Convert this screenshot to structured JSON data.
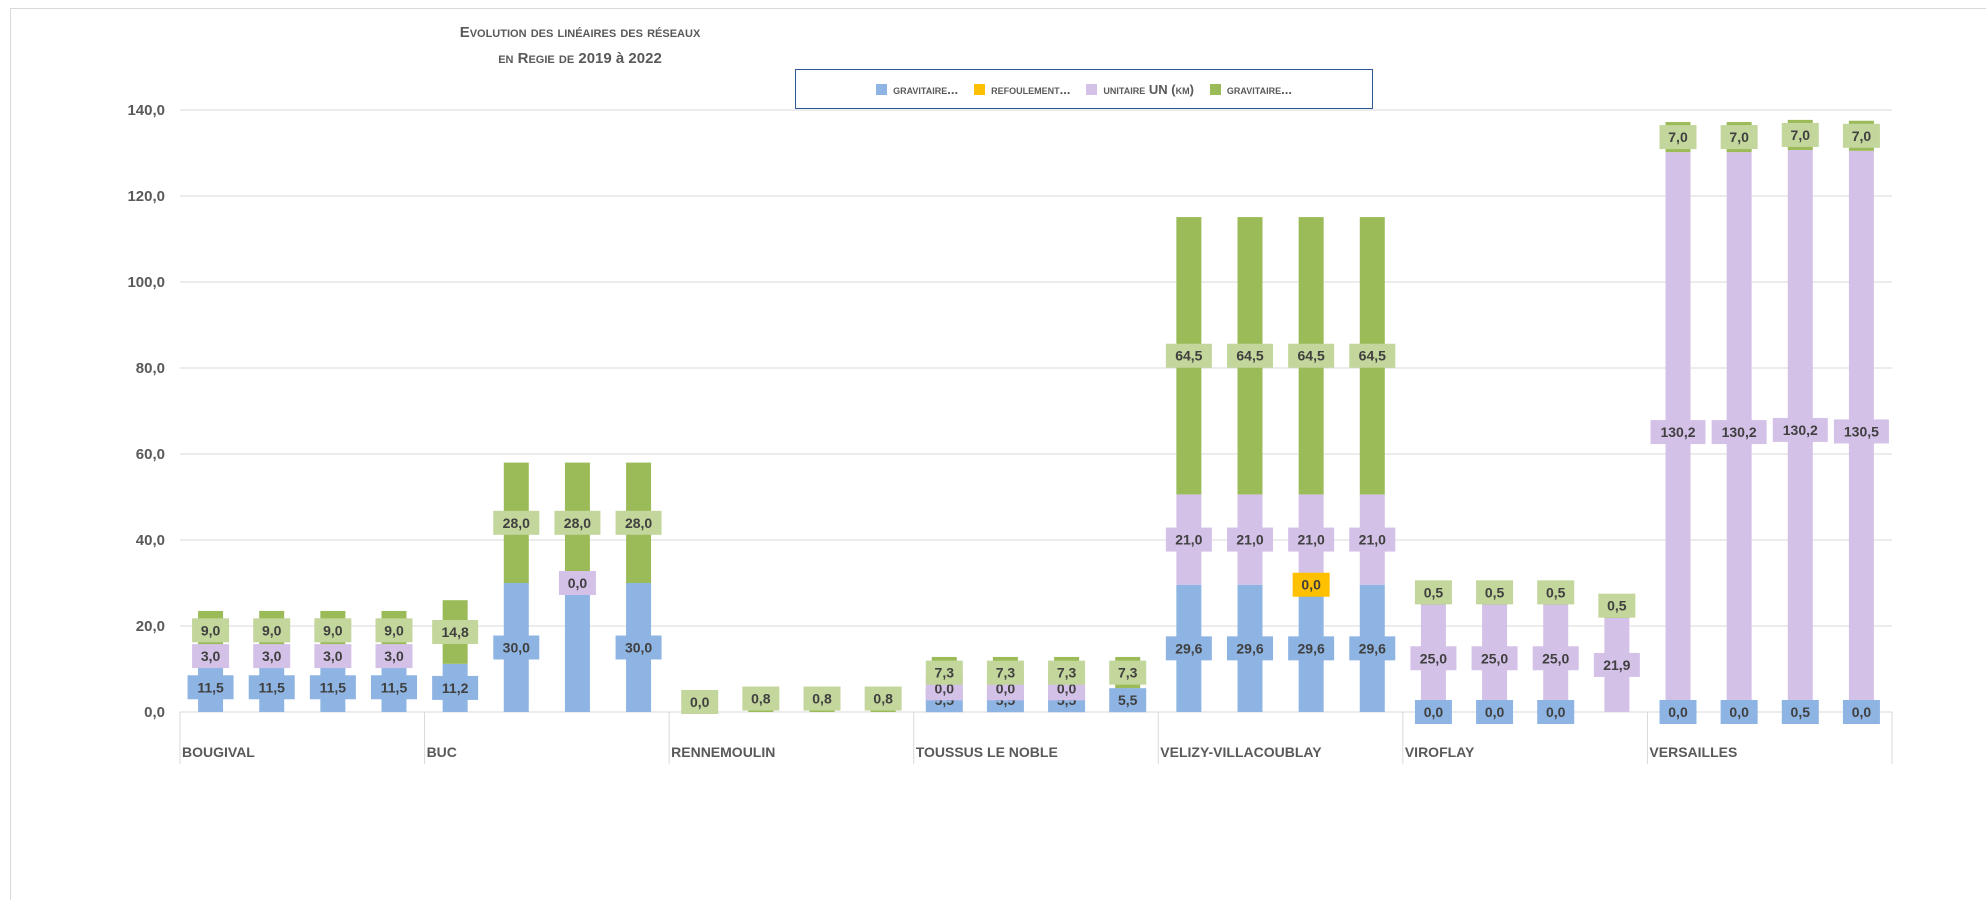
{
  "chart_data": {
    "type": "bar",
    "stacked": true,
    "title_line1": "Evolution des linéaires des réseaux",
    "title_line2_prefix": "en Regie de ",
    "title_line2_years": "2019 à 2022",
    "ylim": [
      0,
      140
    ],
    "yticks": [
      "0,0",
      "20,0",
      "40,0",
      "60,0",
      "80,0",
      "100,0",
      "120,0",
      "140,0"
    ],
    "grid": true,
    "legend_position": "top",
    "groups": [
      "BOUGIVAL",
      "BUC",
      "RENNEMOULIN",
      "TOUSSUS LE NOBLE",
      "VELIZY-VILLACOUBLAY",
      "VIROFLAY",
      "VERSAILLES"
    ],
    "series": [
      {
        "name": "gravitaire...",
        "color": "#8eb4e3"
      },
      {
        "name": "refoulement...",
        "color": "#ffc000"
      },
      {
        "name": "unitaire UN (km)",
        "color": "#d4c1e8"
      },
      {
        "name": "gravitaire...",
        "color": "#9bbb59"
      }
    ],
    "bars": [
      {
        "group": 0,
        "values": [
          11.5,
          0,
          3.0,
          9.0
        ],
        "labels": [
          "11,5",
          "",
          "3,0",
          "9,0"
        ]
      },
      {
        "group": 0,
        "values": [
          11.5,
          0,
          3.0,
          9.0
        ],
        "labels": [
          "11,5",
          "",
          "3,0",
          "9,0"
        ]
      },
      {
        "group": 0,
        "values": [
          11.5,
          0,
          3.0,
          9.0
        ],
        "labels": [
          "11,5",
          "",
          "3,0",
          "9,0"
        ]
      },
      {
        "group": 0,
        "values": [
          11.5,
          0,
          3.0,
          9.0
        ],
        "labels": [
          "11,5",
          "",
          "3,0",
          "9,0"
        ]
      },
      {
        "group": 1,
        "values": [
          11.2,
          0,
          0,
          14.8
        ],
        "labels": [
          "11,2",
          "",
          "",
          "14,8"
        ]
      },
      {
        "group": 1,
        "values": [
          30.0,
          0,
          0,
          28.0
        ],
        "labels": [
          "30,0",
          "",
          "",
          "28,0"
        ]
      },
      {
        "group": 1,
        "values": [
          30.0,
          0,
          0,
          28.0
        ],
        "labels": [
          "",
          "",
          "0,0",
          "28,0"
        ]
      },
      {
        "group": 1,
        "values": [
          30.0,
          0,
          0,
          28.0
        ],
        "labels": [
          "30,0",
          "",
          "",
          "28,0"
        ]
      },
      {
        "group": 2,
        "values": [
          0,
          0,
          0,
          0
        ],
        "labels": [
          "",
          "",
          "",
          "0,0"
        ]
      },
      {
        "group": 2,
        "values": [
          0,
          0,
          0,
          0.8
        ],
        "labels": [
          "",
          "",
          "",
          "0,8"
        ]
      },
      {
        "group": 2,
        "values": [
          0,
          0,
          0,
          0.8
        ],
        "labels": [
          "",
          "",
          "",
          "0,8"
        ]
      },
      {
        "group": 2,
        "values": [
          0,
          0,
          0,
          0.8
        ],
        "labels": [
          "",
          "",
          "",
          "0,8"
        ]
      },
      {
        "group": 3,
        "values": [
          5.5,
          0,
          0,
          7.3
        ],
        "labels": [
          "5,5",
          "",
          "0,0",
          "7,3"
        ]
      },
      {
        "group": 3,
        "values": [
          5.5,
          0,
          0,
          7.3
        ],
        "labels": [
          "5,5",
          "",
          "0,0",
          "7,3"
        ]
      },
      {
        "group": 3,
        "values": [
          5.5,
          0,
          0,
          7.3
        ],
        "labels": [
          "5,5",
          "",
          "0,0",
          "7,3"
        ]
      },
      {
        "group": 3,
        "values": [
          5.5,
          0,
          0,
          7.3
        ],
        "labels": [
          "5,5",
          "",
          "",
          "7,3"
        ]
      },
      {
        "group": 4,
        "values": [
          29.6,
          0,
          21.0,
          64.5
        ],
        "labels": [
          "29,6",
          "",
          "21,0",
          "64,5"
        ]
      },
      {
        "group": 4,
        "values": [
          29.6,
          0,
          21.0,
          64.5
        ],
        "labels": [
          "29,6",
          "",
          "21,0",
          "64,5"
        ]
      },
      {
        "group": 4,
        "values": [
          29.6,
          0,
          21.0,
          64.5
        ],
        "labels": [
          "29,6",
          "0,0",
          "21,0",
          "64,5"
        ]
      },
      {
        "group": 4,
        "values": [
          29.6,
          0,
          21.0,
          64.5
        ],
        "labels": [
          "29,6",
          "",
          "21,0",
          "64,5"
        ]
      },
      {
        "group": 5,
        "values": [
          0,
          0,
          25.0,
          0.5
        ],
        "labels": [
          "0,0",
          "",
          "25,0",
          "0,5"
        ]
      },
      {
        "group": 5,
        "values": [
          0,
          0,
          25.0,
          0.5
        ],
        "labels": [
          "0,0",
          "",
          "25,0",
          "0,5"
        ]
      },
      {
        "group": 5,
        "values": [
          0,
          0,
          25.0,
          0.5
        ],
        "labels": [
          "0,0",
          "",
          "25,0",
          "0,5"
        ]
      },
      {
        "group": 5,
        "values": [
          0,
          0,
          21.9,
          0.5
        ],
        "labels": [
          "",
          "",
          "21,9",
          "0,5"
        ]
      },
      {
        "group": 6,
        "values": [
          0,
          0,
          130.2,
          7.0
        ],
        "labels": [
          "0,0",
          "",
          "130,2",
          "7,0"
        ]
      },
      {
        "group": 6,
        "values": [
          0,
          0,
          130.2,
          7.0
        ],
        "labels": [
          "0,0",
          "",
          "130,2",
          "7,0"
        ]
      },
      {
        "group": 6,
        "values": [
          0.5,
          0,
          130.2,
          7.0
        ],
        "labels": [
          "0,5",
          "",
          "130,2",
          "7,0"
        ]
      },
      {
        "group": 6,
        "values": [
          0,
          0,
          130.5,
          7.0
        ],
        "labels": [
          "0,0",
          "",
          "130,5",
          "7,0"
        ]
      }
    ]
  }
}
